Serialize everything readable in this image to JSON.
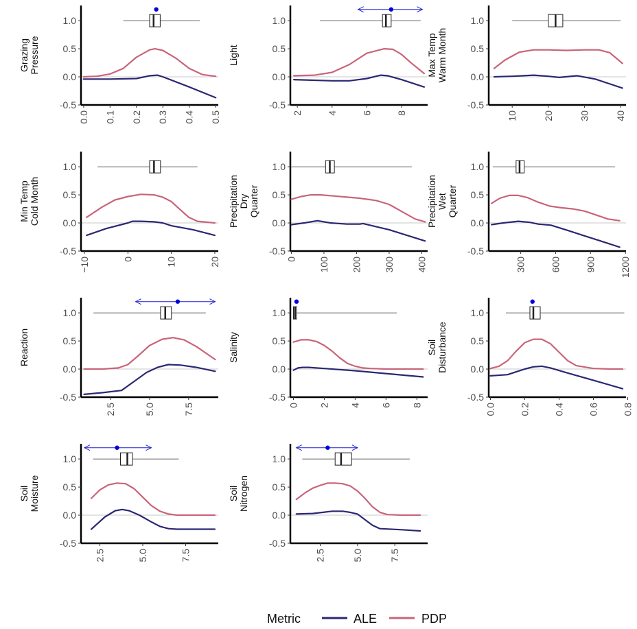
{
  "legend": {
    "title": "Metric",
    "entries": [
      {
        "label": "ALE",
        "color": "#2b2773"
      },
      {
        "label": "PDP",
        "color": "#c9647a"
      }
    ]
  },
  "chart_data": [
    {
      "type": "line",
      "ylabel": [
        "Grazing",
        "Pressure"
      ],
      "xlim": [
        -0.01,
        0.51
      ],
      "xticks": [
        0.0,
        0.1,
        0.2,
        0.3,
        0.4,
        0.5
      ],
      "xtick_labels": [
        "0.0",
        "0.1",
        "0.2",
        "0.3",
        "0.4",
        "0.5"
      ],
      "ylim": [
        -0.5,
        1.27
      ],
      "yticks": [
        -0.5,
        0,
        0.5,
        1.0
      ],
      "ytick_labels": [
        "-0.5",
        "0.0",
        "0.5",
        "1.0"
      ],
      "series": [
        {
          "name": "PDP",
          "x": [
            0,
            0.05,
            0.1,
            0.15,
            0.2,
            0.25,
            0.27,
            0.3,
            0.35,
            0.4,
            0.45,
            0.5
          ],
          "y": [
            0.0,
            0.01,
            0.05,
            0.15,
            0.35,
            0.48,
            0.5,
            0.47,
            0.33,
            0.15,
            0.04,
            0.01
          ]
        },
        {
          "name": "ALE",
          "x": [
            0,
            0.1,
            0.2,
            0.25,
            0.28,
            0.3,
            0.4,
            0.5
          ],
          "y": [
            -0.04,
            -0.04,
            -0.03,
            0.02,
            0.03,
            0.0,
            -0.18,
            -0.37
          ]
        }
      ],
      "box": {
        "whisker_low": 0.15,
        "q1": 0.25,
        "median": 0.265,
        "q3": 0.29,
        "whisker_high": 0.44
      },
      "point": 0.275
    },
    {
      "type": "line",
      "ylabel": [
        "Light"
      ],
      "xlim": [
        1.6,
        9.5
      ],
      "xticks": [
        2,
        4,
        6,
        8
      ],
      "xtick_labels": [
        "2",
        "4",
        "6",
        "8"
      ],
      "ylim": [
        -0.5,
        1.27
      ],
      "yticks": [
        -0.5,
        0,
        0.5,
        1.0
      ],
      "ytick_labels": [
        "-0.5",
        "0.0",
        "0.5",
        "1.0"
      ],
      "series": [
        {
          "name": "PDP",
          "x": [
            1.8,
            3,
            4,
            5,
            6,
            7,
            7.5,
            8,
            8.5,
            9.3
          ],
          "y": [
            0.02,
            0.03,
            0.08,
            0.22,
            0.42,
            0.5,
            0.49,
            0.4,
            0.26,
            0.06
          ]
        },
        {
          "name": "ALE",
          "x": [
            1.8,
            3,
            4,
            5,
            6,
            6.8,
            7.2,
            8,
            9.3
          ],
          "y": [
            -0.05,
            -0.06,
            -0.07,
            -0.07,
            -0.03,
            0.03,
            0.02,
            -0.05,
            -0.18
          ]
        }
      ],
      "box": {
        "whisker_low": 3.3,
        "q1": 6.9,
        "median": 7.1,
        "q3": 7.4,
        "whisker_high": 9.1
      },
      "point": 7.4,
      "ci": [
        5.5,
        9.2
      ]
    },
    {
      "type": "line",
      "ylabel": [
        "Max Temp",
        "Warm Month"
      ],
      "xlim": [
        3.5,
        41.5
      ],
      "xticks": [
        10,
        20,
        30,
        40
      ],
      "xtick_labels": [
        "10",
        "20",
        "30",
        "40"
      ],
      "ylim": [
        -0.5,
        1.27
      ],
      "yticks": [
        -0.5,
        0,
        0.5,
        1.0
      ],
      "ytick_labels": [
        "-0.5",
        "0.0",
        "0.5",
        "1.0"
      ],
      "series": [
        {
          "name": "PDP",
          "x": [
            5,
            8,
            12,
            16,
            20,
            25,
            30,
            34,
            37,
            40.5
          ],
          "y": [
            0.15,
            0.3,
            0.44,
            0.48,
            0.48,
            0.47,
            0.48,
            0.48,
            0.43,
            0.24
          ]
        },
        {
          "name": "ALE",
          "x": [
            5,
            10,
            16,
            20,
            23,
            28,
            33,
            40.5
          ],
          "y": [
            0.0,
            0.01,
            0.03,
            0.01,
            -0.01,
            0.02,
            -0.04,
            -0.2
          ]
        }
      ],
      "box": {
        "whisker_low": 10,
        "q1": 20,
        "median": 22,
        "q3": 24,
        "whisker_high": 40
      }
    },
    {
      "type": "line",
      "ylabel": [
        "Min Temp",
        "Cold Month"
      ],
      "xlim": [
        -10.8,
        20.8
      ],
      "xticks": [
        -10,
        0,
        10,
        20
      ],
      "xtick_labels": [
        "−10",
        "0",
        "10",
        "20"
      ],
      "ylim": [
        -0.5,
        1.27
      ],
      "yticks": [
        -0.5,
        0,
        0.5,
        1.0
      ],
      "ytick_labels": [
        "-0.5",
        "0.0",
        "0.5",
        "1.0"
      ],
      "series": [
        {
          "name": "PDP",
          "x": [
            -9.5,
            -6,
            -3,
            0,
            3,
            6,
            8,
            10,
            12,
            14,
            16,
            20
          ],
          "y": [
            0.1,
            0.28,
            0.41,
            0.47,
            0.51,
            0.5,
            0.46,
            0.38,
            0.24,
            0.1,
            0.03,
            0.0
          ]
        },
        {
          "name": "ALE",
          "x": [
            -9.5,
            -5,
            0,
            1,
            3,
            6,
            8,
            10,
            15,
            20
          ],
          "y": [
            -0.22,
            -0.1,
            0.0,
            0.03,
            0.03,
            0.02,
            0.0,
            -0.05,
            -0.12,
            -0.22
          ]
        }
      ],
      "box": {
        "whisker_low": -7,
        "q1": 5,
        "median": 6,
        "q3": 7.5,
        "whisker_high": 16
      }
    },
    {
      "type": "line",
      "ylabel": [
        "Precipitation",
        "Dry",
        "Quarter"
      ],
      "xlim": [
        -3,
        418
      ],
      "xticks": [
        0,
        100,
        200,
        300,
        400
      ],
      "xtick_labels": [
        "0",
        "100",
        "200",
        "300",
        "400"
      ],
      "ylim": [
        -0.5,
        1.27
      ],
      "yticks": [
        -0.5,
        0,
        0.5,
        1.0
      ],
      "ytick_labels": [
        "-0.5",
        "0.0",
        "0.5",
        "1.0"
      ],
      "series": [
        {
          "name": "PDP",
          "x": [
            0,
            30,
            60,
            90,
            130,
            170,
            210,
            260,
            300,
            340,
            380,
            410
          ],
          "y": [
            0.42,
            0.47,
            0.5,
            0.5,
            0.48,
            0.46,
            0.44,
            0.4,
            0.33,
            0.2,
            0.07,
            0.02
          ]
        },
        {
          "name": "ALE",
          "x": [
            0,
            40,
            80,
            120,
            170,
            210,
            220,
            300,
            410
          ],
          "y": [
            -0.03,
            0.0,
            0.04,
            0.0,
            -0.02,
            -0.02,
            -0.01,
            -0.12,
            -0.32
          ]
        }
      ],
      "box": {
        "whisker_low": 0,
        "q1": 105,
        "median": 118,
        "q3": 132,
        "whisker_high": 370
      }
    },
    {
      "type": "line",
      "ylabel": [
        "Precipitation",
        "Wet",
        "Quarter"
      ],
      "xlim": [
        25,
        1205
      ],
      "xticks": [
        300,
        600,
        900,
        1200
      ],
      "xtick_labels": [
        "300",
        "600",
        "900",
        "1200"
      ],
      "ylim": [
        -0.5,
        1.27
      ],
      "yticks": [
        -0.5,
        0,
        0.5,
        1.0
      ],
      "ytick_labels": [
        "-0.5",
        "0.0",
        "0.5",
        "1.0"
      ],
      "series": [
        {
          "name": "PDP",
          "x": [
            50,
            120,
            200,
            280,
            360,
            450,
            550,
            650,
            750,
            850,
            950,
            1050,
            1150
          ],
          "y": [
            0.35,
            0.44,
            0.49,
            0.49,
            0.45,
            0.37,
            0.3,
            0.27,
            0.25,
            0.21,
            0.14,
            0.07,
            0.04
          ]
        },
        {
          "name": "ALE",
          "x": [
            50,
            150,
            280,
            380,
            450,
            560,
            700,
            850,
            1000,
            1150
          ],
          "y": [
            -0.03,
            0.0,
            0.03,
            0.01,
            -0.02,
            -0.04,
            -0.13,
            -0.23,
            -0.33,
            -0.43
          ]
        }
      ],
      "box": {
        "whisker_low": 60,
        "q1": 260,
        "median": 290,
        "q3": 330,
        "whisker_high": 1110
      }
    },
    {
      "type": "line",
      "ylabel": [
        "Reaction"
      ],
      "xlim": [
        0.6,
        9.4
      ],
      "xticks": [
        2.5,
        5.0,
        7.5
      ],
      "xtick_labels": [
        "2.5",
        "5.0",
        "7.5"
      ],
      "ylim": [
        -0.5,
        1.27
      ],
      "yticks": [
        -0.5,
        0,
        0.5,
        1.0
      ],
      "ytick_labels": [
        "-0.5",
        "0.0",
        "0.5",
        "1.0"
      ],
      "series": [
        {
          "name": "PDP",
          "x": [
            0.8,
            2,
            3,
            3.6,
            4.2,
            5,
            5.8,
            6.5,
            7.2,
            8,
            9.2
          ],
          "y": [
            0.0,
            0.0,
            0.02,
            0.08,
            0.22,
            0.42,
            0.53,
            0.56,
            0.52,
            0.4,
            0.17
          ]
        },
        {
          "name": "ALE",
          "x": [
            0.8,
            2,
            3.2,
            4,
            4.8,
            5.5,
            6.2,
            7,
            8,
            9.2
          ],
          "y": [
            -0.45,
            -0.42,
            -0.38,
            -0.22,
            -0.06,
            0.03,
            0.08,
            0.07,
            0.03,
            -0.04
          ]
        }
      ],
      "box": {
        "whisker_low": 1.4,
        "q1": 5.7,
        "median": 6.0,
        "q3": 6.4,
        "whisker_high": 8.6
      },
      "point": 6.8,
      "ci": [
        4.1,
        9.2
      ]
    },
    {
      "type": "line",
      "ylabel": [
        "Salinity"
      ],
      "xlim": [
        -0.2,
        8.7
      ],
      "xticks": [
        0,
        2,
        4,
        6,
        8
      ],
      "xtick_labels": [
        "0",
        "2",
        "4",
        "6",
        "8"
      ],
      "ylim": [
        -0.5,
        1.27
      ],
      "yticks": [
        -0.5,
        0,
        0.5,
        1.0
      ],
      "ytick_labels": [
        "-0.5",
        "0.0",
        "0.5",
        "1.0"
      ],
      "series": [
        {
          "name": "PDP",
          "x": [
            0,
            0.5,
            1,
            1.5,
            2,
            2.5,
            3,
            3.5,
            4,
            4.5,
            5,
            6,
            7,
            8.4
          ],
          "y": [
            0.48,
            0.52,
            0.52,
            0.49,
            0.42,
            0.32,
            0.2,
            0.1,
            0.05,
            0.02,
            0.01,
            0.0,
            0.0,
            0.0
          ]
        },
        {
          "name": "ALE",
          "x": [
            0,
            0.3,
            0.6,
            1,
            2,
            4,
            6,
            8.4
          ],
          "y": [
            -0.02,
            0.02,
            0.03,
            0.03,
            0.01,
            -0.03,
            -0.08,
            -0.14
          ]
        }
      ],
      "box": {
        "whisker_low": 0.0,
        "q1": 0.0,
        "median": 0.1,
        "q3": 0.2,
        "whisker_high": 6.7
      },
      "point": 0.2
    },
    {
      "type": "line",
      "ylabel": [
        "Soil",
        "Disturbance"
      ],
      "xlim": [
        -0.01,
        0.79
      ],
      "xticks": [
        0.0,
        0.2,
        0.4,
        0.6,
        0.8
      ],
      "xtick_labels": [
        "0.0",
        "0.2",
        "0.4",
        "0.6",
        "0.8"
      ],
      "ylim": [
        -0.5,
        1.27
      ],
      "yticks": [
        -0.5,
        0,
        0.5,
        1.0
      ],
      "ytick_labels": [
        "-0.5",
        "0.0",
        "0.5",
        "1.0"
      ],
      "series": [
        {
          "name": "PDP",
          "x": [
            0,
            0.05,
            0.1,
            0.15,
            0.2,
            0.25,
            0.3,
            0.35,
            0.4,
            0.45,
            0.5,
            0.6,
            0.7,
            0.77
          ],
          "y": [
            0.01,
            0.05,
            0.15,
            0.32,
            0.47,
            0.53,
            0.53,
            0.45,
            0.3,
            0.15,
            0.06,
            0.01,
            0.0,
            0.0
          ]
        },
        {
          "name": "ALE",
          "x": [
            0,
            0.1,
            0.15,
            0.2,
            0.25,
            0.3,
            0.35,
            0.45,
            0.6,
            0.77
          ],
          "y": [
            -0.12,
            -0.1,
            -0.05,
            0.0,
            0.04,
            0.05,
            0.02,
            -0.07,
            -0.2,
            -0.35
          ]
        }
      ],
      "box": {
        "whisker_low": 0.09,
        "q1": 0.23,
        "median": 0.25,
        "q3": 0.29,
        "whisker_high": 0.78
      },
      "point": 0.245
    },
    {
      "type": "line",
      "ylabel": [
        "Soil",
        "Moisture"
      ],
      "xlim": [
        1.4,
        9.4
      ],
      "xticks": [
        2.5,
        5.0,
        7.5
      ],
      "xtick_labels": [
        "2.5",
        "5.0",
        "7.5"
      ],
      "ylim": [
        -0.5,
        1.27
      ],
      "yticks": [
        -0.5,
        0,
        0.5,
        1.0
      ],
      "ytick_labels": [
        "-0.5",
        "0.0",
        "0.5",
        "1.0"
      ],
      "series": [
        {
          "name": "PDP",
          "x": [
            2,
            2.5,
            3,
            3.5,
            4,
            4.5,
            5,
            5.5,
            6,
            6.5,
            7,
            8,
            9.2
          ],
          "y": [
            0.3,
            0.45,
            0.54,
            0.57,
            0.56,
            0.47,
            0.32,
            0.17,
            0.07,
            0.02,
            0.0,
            0.0,
            0.0
          ]
        },
        {
          "name": "ALE",
          "x": [
            2,
            2.8,
            3.4,
            3.8,
            4.2,
            4.8,
            5.5,
            6,
            6.5,
            7,
            8,
            9.2
          ],
          "y": [
            -0.25,
            -0.03,
            0.08,
            0.1,
            0.08,
            0.0,
            -0.12,
            -0.2,
            -0.24,
            -0.25,
            -0.25,
            -0.25
          ]
        }
      ],
      "box": {
        "whisker_low": 2.1,
        "q1": 3.7,
        "median": 4.1,
        "q3": 4.4,
        "whisker_high": 7.1
      },
      "point": 3.5,
      "ci": [
        1.6,
        5.5
      ]
    },
    {
      "type": "line",
      "ylabel": [
        "Soil",
        "Nitrogen"
      ],
      "xlim": [
        0.5,
        9.7
      ],
      "xticks": [
        2.5,
        5.0,
        7.5
      ],
      "xtick_labels": [
        "2.5",
        "5.0",
        "7.5"
      ],
      "ylim": [
        -0.5,
        1.27
      ],
      "yticks": [
        -0.5,
        0,
        0.5,
        1.0
      ],
      "ytick_labels": [
        "-0.5",
        "0.0",
        "0.5",
        "1.0"
      ],
      "series": [
        {
          "name": "PDP",
          "x": [
            0.9,
            1.5,
            2,
            2.5,
            3,
            3.5,
            4,
            4.5,
            5,
            5.5,
            6,
            6.5,
            7,
            8,
            9.2
          ],
          "y": [
            0.28,
            0.4,
            0.48,
            0.53,
            0.57,
            0.57,
            0.56,
            0.52,
            0.43,
            0.3,
            0.15,
            0.05,
            0.01,
            0.0,
            0.0
          ]
        },
        {
          "name": "ALE",
          "x": [
            0.9,
            2,
            2.7,
            3.3,
            4,
            4.5,
            5,
            5.5,
            6,
            6.5,
            8,
            9.2
          ],
          "y": [
            0.02,
            0.03,
            0.05,
            0.07,
            0.07,
            0.05,
            0.02,
            -0.08,
            -0.18,
            -0.24,
            -0.26,
            -0.28
          ]
        }
      ],
      "box": {
        "whisker_low": 1.3,
        "q1": 3.5,
        "median": 3.9,
        "q3": 4.6,
        "whisker_high": 8.5
      },
      "point": 3.0,
      "ci": [
        0.9,
        5.0
      ]
    }
  ]
}
